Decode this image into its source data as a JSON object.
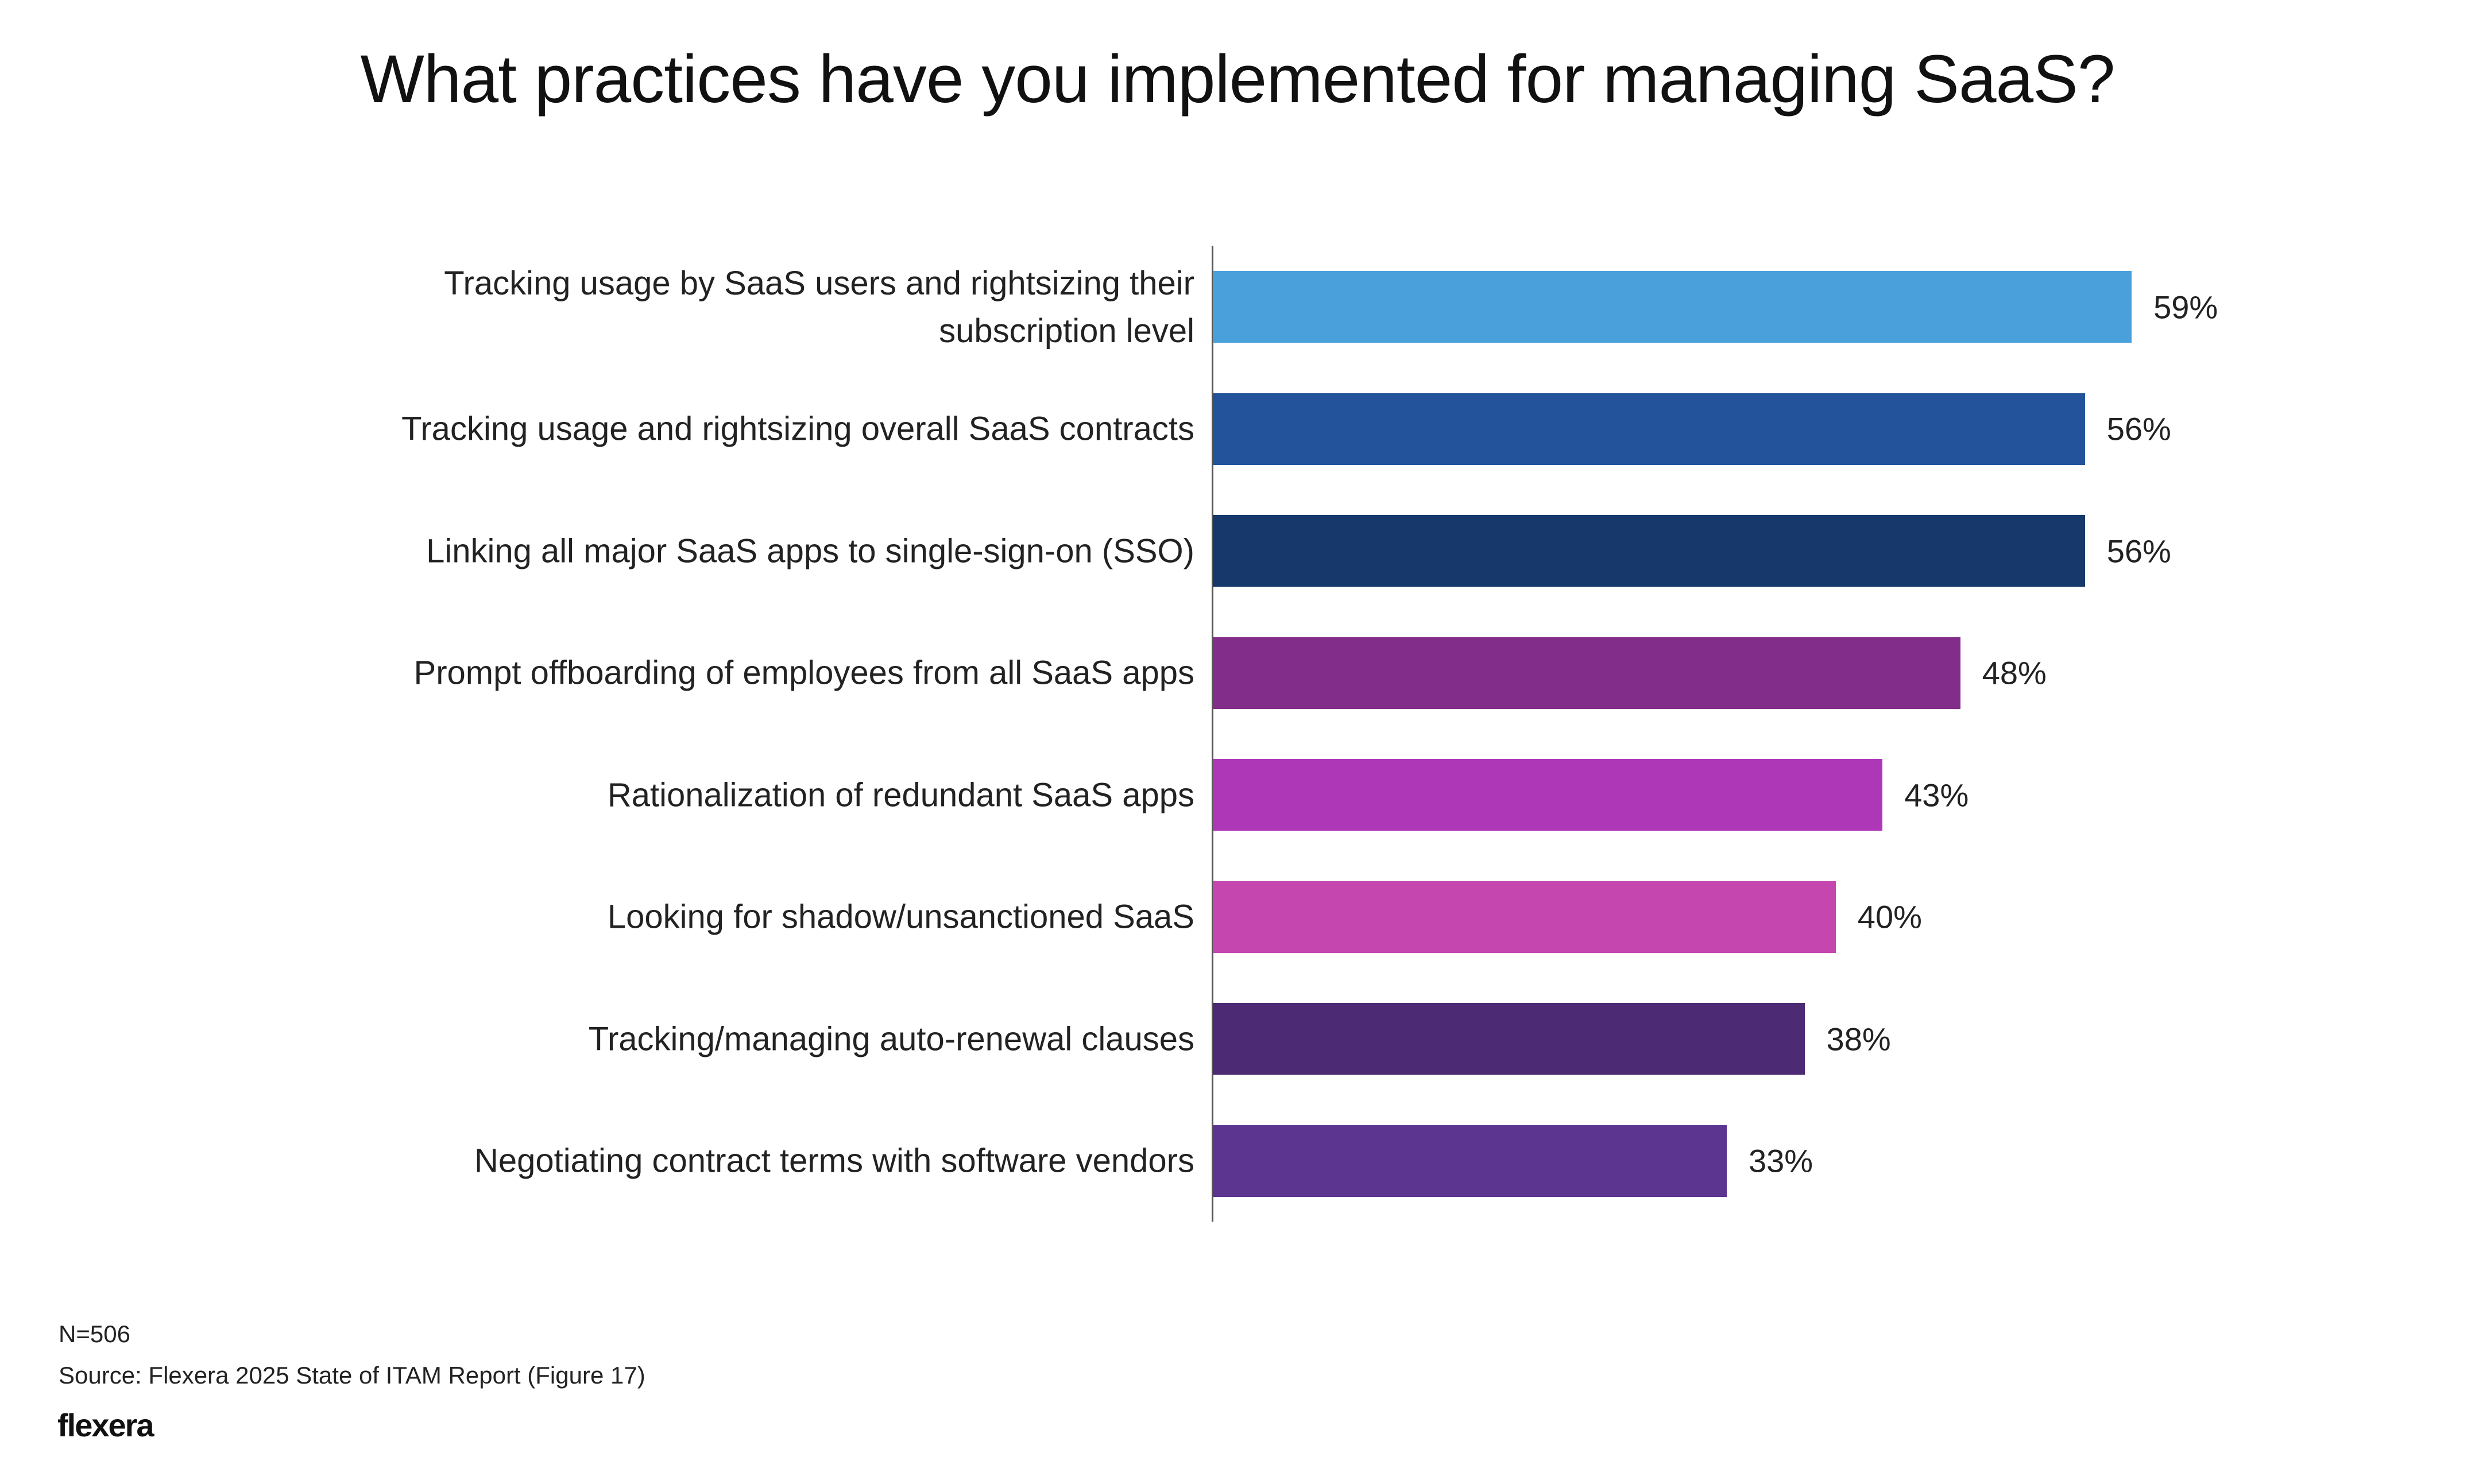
{
  "chart_data": {
    "type": "bar",
    "orientation": "horizontal",
    "title": "What practices have you implemented for managing SaaS?",
    "categories": [
      "Tracking usage by SaaS users and rightsizing their subscription level",
      "Tracking usage and rightsizing overall SaaS contracts",
      "Linking all major SaaS apps to single-sign-on (SSO)",
      "Prompt offboarding of employees from all SaaS apps",
      "Rationalization of redundant SaaS apps",
      "Looking for shadow/unsanctioned SaaS",
      "Tracking/managing auto-renewal clauses",
      "Negotiating contract terms with software vendors"
    ],
    "values": [
      59,
      56,
      56,
      48,
      43,
      40,
      38,
      33
    ],
    "value_labels": [
      "59%",
      "56%",
      "56%",
      "48%",
      "43%",
      "40%",
      "38%",
      "33%"
    ],
    "colors": [
      "#4aa0db",
      "#23539b",
      "#16386b",
      "#832d8a",
      "#ae37b8",
      "#c646b0",
      "#4d2a74",
      "#5b358f"
    ],
    "xlabel": "",
    "ylabel": "",
    "xlim": [
      0,
      100
    ],
    "grid": false,
    "legend": "none"
  },
  "footer": {
    "n": "N=506",
    "source": "Source: Flexera 2025 State of ITAM Report (Figure 17)",
    "logo": "flexera"
  }
}
